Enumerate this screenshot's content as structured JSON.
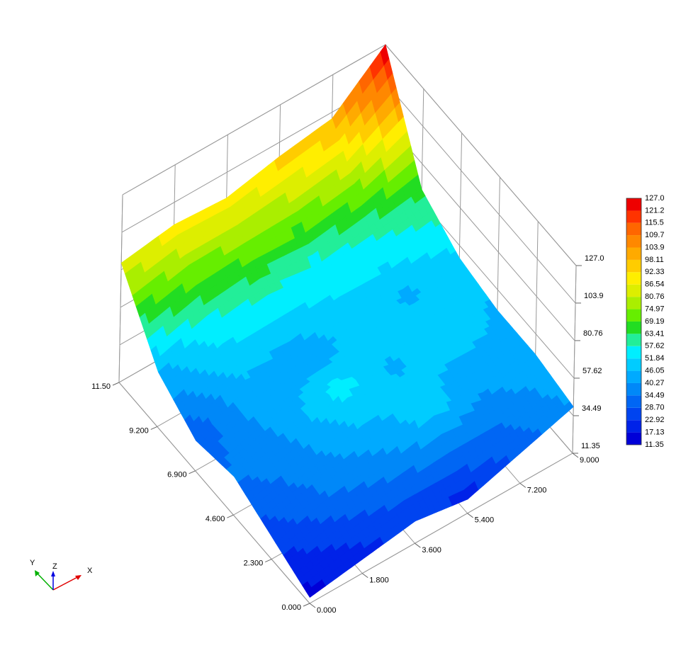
{
  "chart_data": {
    "type": "surface3d",
    "xlim": [
      0,
      9
    ],
    "xticks": [
      {
        "value": 0,
        "label": "0.000"
      },
      {
        "value": 1.8,
        "label": "1.800"
      },
      {
        "value": 3.6,
        "label": "3.600"
      },
      {
        "value": 5.4,
        "label": "5.400"
      },
      {
        "value": 7.2,
        "label": "7.200"
      },
      {
        "value": 9,
        "label": "9.000"
      }
    ],
    "ylim": [
      0,
      11.5
    ],
    "yticks": [
      {
        "value": 0,
        "label": "0.000"
      },
      {
        "value": 2.3,
        "label": "2.300"
      },
      {
        "value": 4.6,
        "label": "4.600"
      },
      {
        "value": 6.9,
        "label": "6.900"
      },
      {
        "value": 9.2,
        "label": "9.200"
      },
      {
        "value": 11.5,
        "label": "11.50"
      }
    ],
    "zlim": [
      11.35,
      127
    ],
    "zticks": [
      11.35,
      34.49,
      57.62,
      80.76,
      103.9,
      {
        "value": 127,
        "label": "127.0"
      }
    ],
    "x": [
      0,
      1.8,
      3.6,
      5.4,
      7.2,
      9
    ],
    "y": [
      0,
      2.3,
      4.6,
      6.9,
      9.2,
      11.5
    ],
    "z": [
      [
        15,
        20,
        25,
        20,
        30,
        40
      ],
      [
        25,
        35,
        40,
        50,
        40,
        45
      ],
      [
        35,
        40,
        55,
        45,
        50,
        45
      ],
      [
        30,
        45,
        40,
        50,
        45,
        50
      ],
      [
        45,
        55,
        60,
        55,
        60,
        65
      ],
      [
        85,
        90,
        88,
        95,
        100,
        127
      ]
    ],
    "colorbar": {
      "levels": [
        11.35,
        17.13,
        22.92,
        {
          "value": 28.7,
          "label": "28.70"
        },
        34.49,
        40.27,
        46.05,
        51.84,
        57.62,
        63.41,
        69.19,
        74.97,
        80.76,
        86.54,
        92.33,
        98.11,
        103.9,
        109.7,
        115.5,
        121.2,
        {
          "value": 127,
          "label": "127.0"
        }
      ],
      "colors": [
        "#0000d8",
        "#0022e8",
        "#0044f0",
        "#0066f4",
        "#0088f8",
        "#00aaff",
        "#00ccff",
        "#00eeff",
        "#22ee99",
        "#22dd22",
        "#66ee00",
        "#aaee00",
        "#ddee00",
        "#ffee00",
        "#ffcc00",
        "#ffaa00",
        "#ff8800",
        "#ff6600",
        "#ff3300",
        "#ee0000"
      ]
    },
    "axis_triad": {
      "x": "X",
      "y": "Y",
      "z": "Z"
    }
  }
}
